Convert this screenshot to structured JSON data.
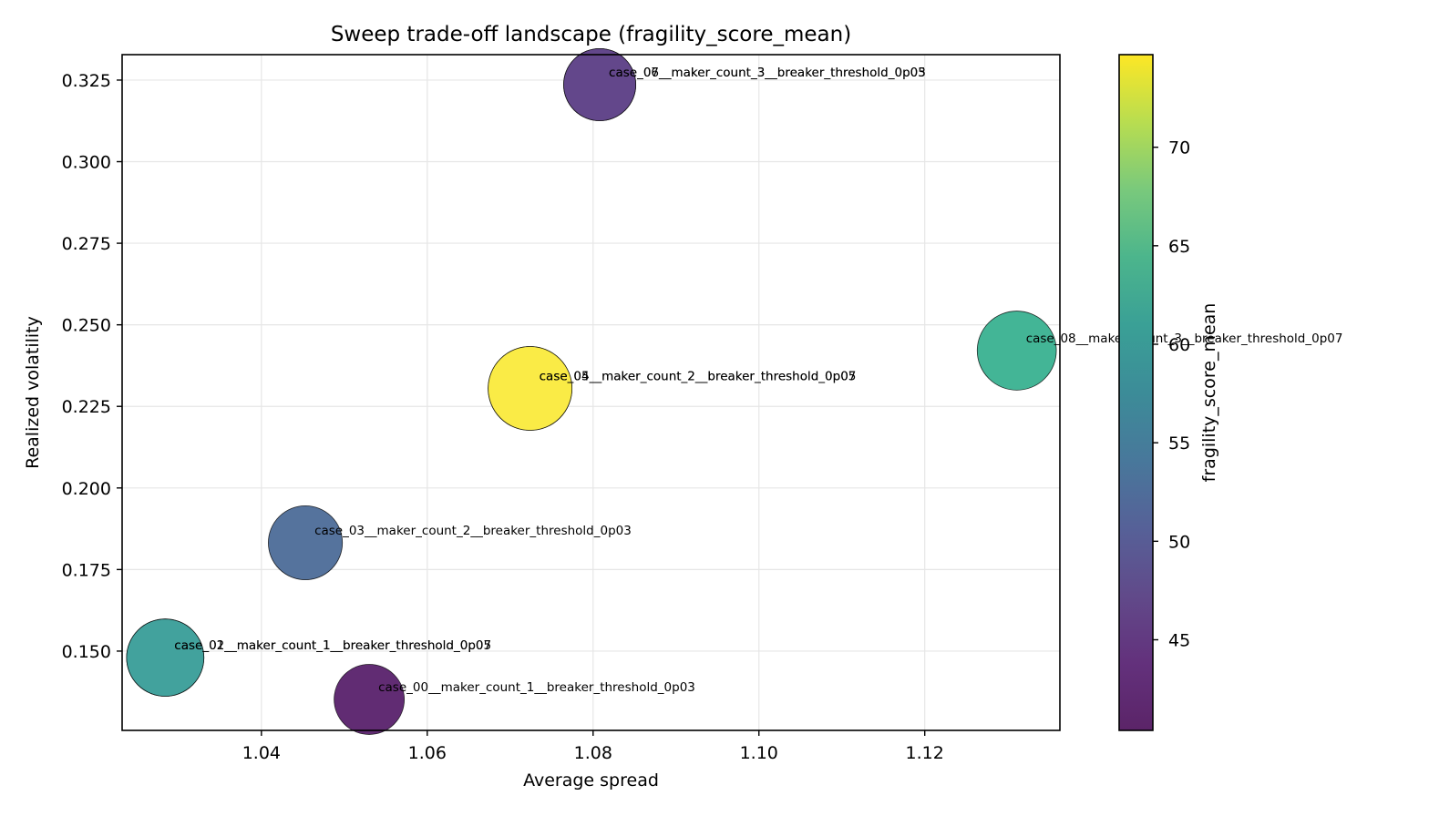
{
  "chart_data": {
    "type": "scatter",
    "title": "Sweep trade-off landscape (fragility_score_mean)",
    "xlabel": "Average spread",
    "ylabel": "Realized volatility",
    "xlim": [
      1.0232,
      1.1363
    ],
    "ylim": [
      0.1257,
      0.3328
    ],
    "xticks": [
      1.04,
      1.06,
      1.08,
      1.1,
      1.12
    ],
    "xtick_labels": [
      "1.04",
      "1.06",
      "1.08",
      "1.10",
      "1.12"
    ],
    "yticks": [
      0.15,
      0.175,
      0.2,
      0.225,
      0.25,
      0.275,
      0.3,
      0.325
    ],
    "ytick_labels": [
      "0.150",
      "0.175",
      "0.200",
      "0.225",
      "0.250",
      "0.275",
      "0.300",
      "0.325"
    ],
    "grid": true,
    "colorbar": {
      "label": "fragility_score_mean",
      "colormap": "viridis",
      "range": [
        40.4,
        74.7
      ],
      "ticks": [
        45,
        50,
        55,
        60,
        65,
        70
      ],
      "tick_labels": [
        "45",
        "50",
        "55",
        "60",
        "65",
        "70"
      ]
    },
    "size_encoding": "marker area varies by case",
    "points": [
      {
        "label": "case_00__maker_count_1__breaker_threshold_0p03",
        "x": 1.053,
        "y": 0.1352,
        "color_value": 41.0,
        "size": 0.7
      },
      {
        "label": "case_01__maker_count_1__breaker_threshold_0p05",
        "x": 1.0284,
        "y": 0.148,
        "color_value": 57.5,
        "size": 0.85
      },
      {
        "label": "case_02__maker_count_1__breaker_threshold_0p07",
        "x": 1.0284,
        "y": 0.148,
        "color_value": 57.5,
        "size": 0.85
      },
      {
        "label": "case_03__maker_count_2__breaker_threshold_0p03",
        "x": 1.0453,
        "y": 0.1832,
        "color_value": 50.0,
        "size": 0.78
      },
      {
        "label": "case_04__maker_count_2__breaker_threshold_0p05",
        "x": 1.0724,
        "y": 0.2305,
        "color_value": 74.5,
        "size": 1.0
      },
      {
        "label": "case_05__maker_count_2__breaker_threshold_0p07",
        "x": 1.0724,
        "y": 0.2305,
        "color_value": 74.5,
        "size": 1.0
      },
      {
        "label": "case_06__maker_count_3__breaker_threshold_0p03",
        "x": 1.0808,
        "y": 0.3236,
        "color_value": 44.0,
        "size": 0.74
      },
      {
        "label": "case_07__maker_count_3__breaker_threshold_0p05",
        "x": 1.0808,
        "y": 0.3236,
        "color_value": 44.0,
        "size": 0.74
      },
      {
        "label": "case_08__maker_count_3__breaker_threshold_0p07",
        "x": 1.1311,
        "y": 0.2421,
        "color_value": 61.0,
        "size": 0.89
      }
    ]
  }
}
